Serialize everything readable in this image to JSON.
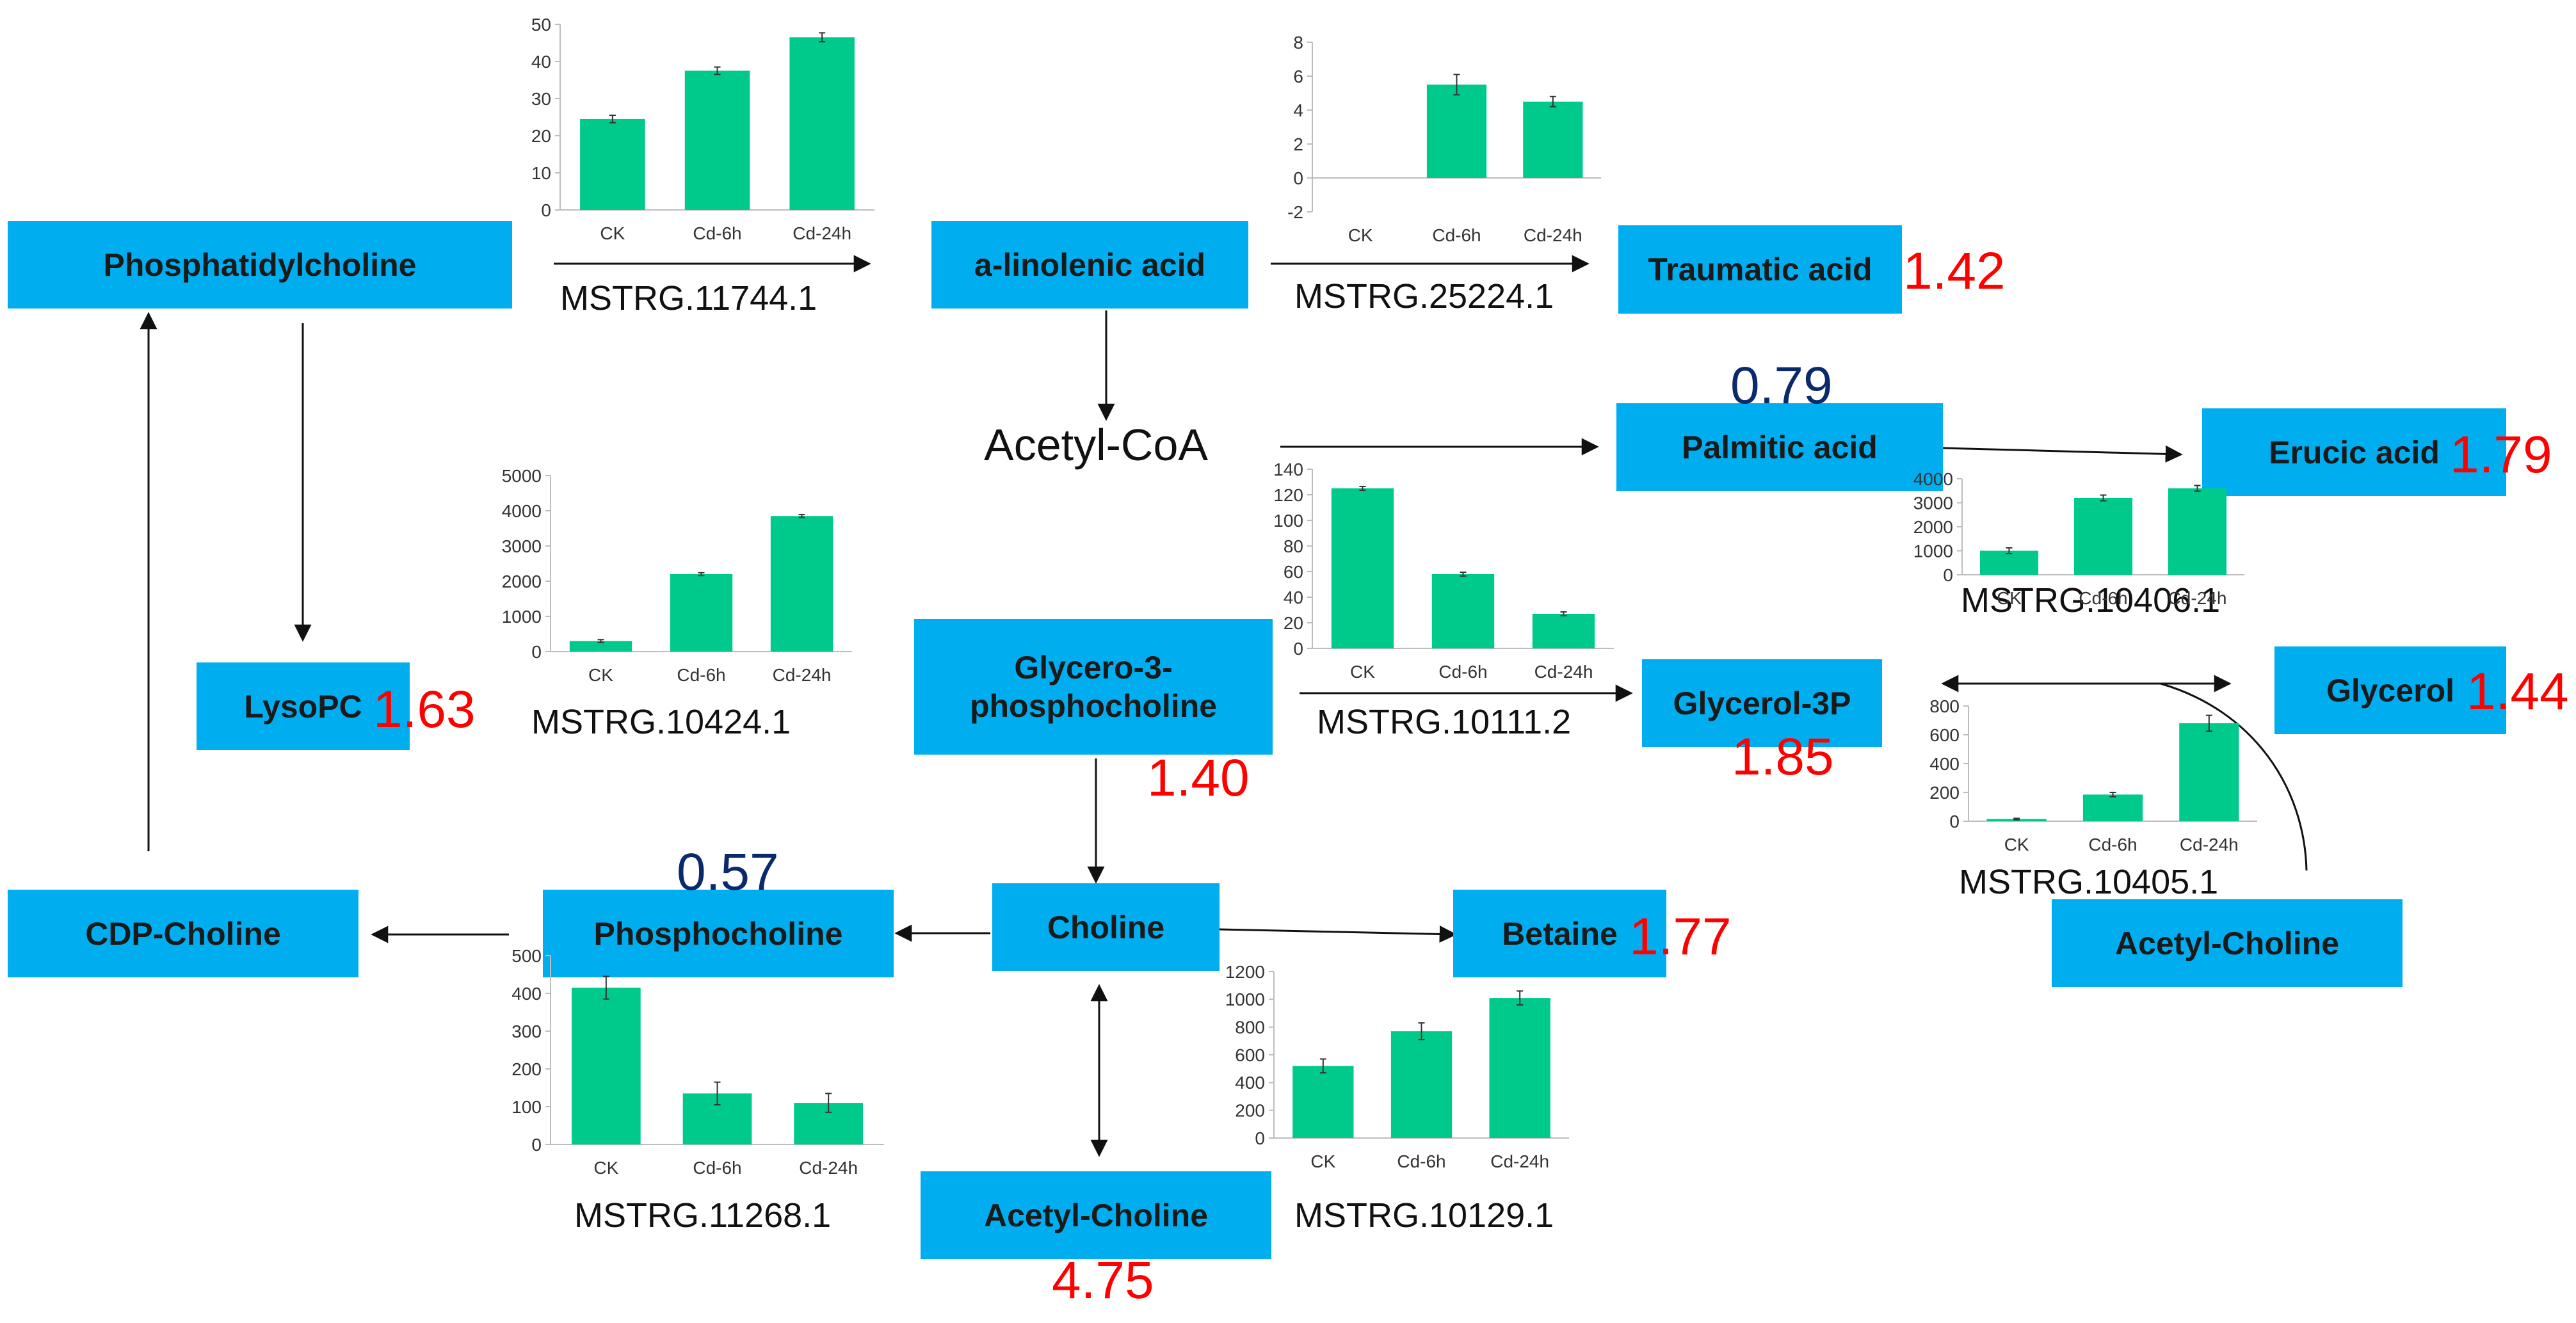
{
  "nodes": {
    "phosphatidylcholine": "Phosphatidylcholine",
    "linolenic": "a-linolenic acid",
    "traumatic": "Traumatic acid",
    "palmitic": "Palmitic acid",
    "erucic": "Erucic acid",
    "lysopc": "LysoPC",
    "glycero3pc": "Glycero-3-phosphocholine",
    "glycerol3p": "Glycerol-3P",
    "glycerol": "Glycerol",
    "cdpcholine": "CDP-Choline",
    "phosphocholine": "Phosphocholine",
    "choline": "Choline",
    "betaine": "Betaine",
    "acetylcholine_bottom": "Acetyl-Choline",
    "acetylcholine_right": "Acetyl-Choline"
  },
  "metabolites": {
    "acetyl_coa": "Acetyl-CoA"
  },
  "fold_changes": {
    "traumatic": "1.42",
    "palmitic": "0.79",
    "erucic": "1.79",
    "lysopc": "1.63",
    "glycero3pc": "1.40",
    "glycerol3p": "1.85",
    "glycerol": "1.44",
    "phosphocholine": "0.57",
    "betaine": "1.77",
    "acetylcholine": "4.75"
  },
  "colors": {
    "node_fill": "#00AEEF",
    "bar_fill": "#00C98C",
    "fold_up": "#ff0000",
    "fold_down": "#0b2a6b"
  },
  "chart_data": [
    {
      "type": "bar",
      "gene": "MSTRG.11744.1",
      "categories": [
        "CK",
        "Cd-6h",
        "Cd-24h"
      ],
      "values": [
        24.5,
        37.5,
        46.5
      ],
      "errors": [
        1.0,
        1.0,
        1.2
      ],
      "yticks": [
        0,
        10,
        20,
        30,
        40,
        50
      ],
      "ylim": [
        0,
        50
      ]
    },
    {
      "type": "bar",
      "gene": "MSTRG.25224.1",
      "categories": [
        "CK",
        "Cd-6h",
        "Cd-24h"
      ],
      "values": [
        0,
        5.5,
        4.5
      ],
      "errors": [
        0,
        0.6,
        0.3
      ],
      "yticks": [
        -2,
        0,
        2,
        4,
        6,
        8
      ],
      "ylim": [
        -2,
        8
      ]
    },
    {
      "type": "bar",
      "gene": "MSTRG.10424.1",
      "categories": [
        "CK",
        "Cd-6h",
        "Cd-24h"
      ],
      "values": [
        300,
        2200,
        3850
      ],
      "errors": [
        40,
        40,
        40
      ],
      "yticks": [
        0,
        1000,
        2000,
        3000,
        4000,
        5000
      ],
      "ylim": [
        0,
        5000
      ]
    },
    {
      "type": "bar",
      "gene": "MSTRG.10111.2",
      "categories": [
        "CK",
        "Cd-6h",
        "Cd-24h"
      ],
      "values": [
        125,
        58,
        27
      ],
      "errors": [
        1.5,
        1.5,
        1.5
      ],
      "yticks": [
        0,
        20,
        40,
        60,
        80,
        100,
        120,
        140
      ],
      "ylim": [
        0,
        140
      ]
    },
    {
      "type": "bar",
      "gene": "MSTRG.10406.1",
      "categories": [
        "CK",
        "Cd-6h",
        "Cd-24h"
      ],
      "values": [
        1000,
        3200,
        3600
      ],
      "errors": [
        120,
        120,
        120
      ],
      "yticks": [
        0,
        1000,
        2000,
        3000,
        4000
      ],
      "ylim": [
        0,
        4000
      ]
    },
    {
      "type": "bar",
      "gene": "MSTRG.10405.1",
      "categories": [
        "CK",
        "Cd-6h",
        "Cd-24h"
      ],
      "values": [
        15,
        185,
        680
      ],
      "errors": [
        5,
        15,
        55
      ],
      "yticks": [
        0,
        200,
        400,
        600,
        800
      ],
      "ylim": [
        0,
        800
      ]
    },
    {
      "type": "bar",
      "gene": "MSTRG.11268.1",
      "categories": [
        "CK",
        "Cd-6h",
        "Cd-24h"
      ],
      "values": [
        415,
        135,
        110
      ],
      "errors": [
        30,
        30,
        25
      ],
      "yticks": [
        0,
        100,
        200,
        300,
        400,
        500
      ],
      "ylim": [
        0,
        500
      ]
    },
    {
      "type": "bar",
      "gene": "MSTRG.10129.1",
      "categories": [
        "CK",
        "Cd-6h",
        "Cd-24h"
      ],
      "values": [
        520,
        770,
        1010
      ],
      "errors": [
        50,
        60,
        50
      ],
      "yticks": [
        0,
        200,
        400,
        600,
        800,
        1000,
        1200
      ],
      "ylim": [
        0,
        1200
      ]
    }
  ]
}
